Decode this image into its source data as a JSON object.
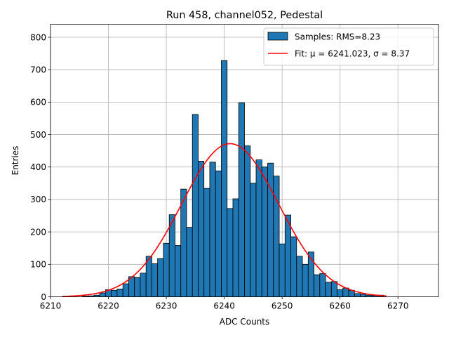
{
  "chart_data": {
    "type": "bar",
    "title": "Run 458, channel052, Pedestal",
    "xlabel": "ADC Counts",
    "ylabel": "Entries",
    "xlim": [
      6210,
      6277
    ],
    "ylim": [
      0,
      840
    ],
    "xticks": [
      6210,
      6220,
      6230,
      6240,
      6250,
      6260,
      6270
    ],
    "yticks": [
      0,
      100,
      200,
      300,
      400,
      500,
      600,
      700,
      800
    ],
    "grid": true,
    "legend_position": "top-right",
    "bar_color": "#1f77b4",
    "fit_color": "#ff0000",
    "series": [
      {
        "name": "Samples: RMS=8.23",
        "kind": "histogram",
        "bin_width": 1,
        "bin_centers": [
          6216,
          6217,
          6218,
          6219,
          6220,
          6221,
          6222,
          6223,
          6224,
          6225,
          6226,
          6227,
          6228,
          6229,
          6230,
          6231,
          6232,
          6233,
          6234,
          6235,
          6236,
          6237,
          6238,
          6239,
          6240,
          6241,
          6242,
          6243,
          6244,
          6245,
          6246,
          6247,
          6248,
          6249,
          6250,
          6251,
          6252,
          6253,
          6254,
          6255,
          6256,
          6257,
          6258,
          6259,
          6260,
          6261,
          6262,
          6263,
          6264,
          6265,
          6266,
          6267
        ],
        "values": [
          2,
          3,
          5,
          12,
          22,
          20,
          24,
          40,
          62,
          60,
          73,
          125,
          102,
          118,
          165,
          253,
          158,
          332,
          214,
          562,
          418,
          334,
          415,
          388,
          728,
          272,
          302,
          598,
          465,
          350,
          422,
          400,
          412,
          372,
          163,
          252,
          185,
          125,
          100,
          138,
          68,
          72,
          45,
          47,
          22,
          27,
          20,
          10,
          8,
          5,
          4,
          5
        ]
      },
      {
        "name": "Fit: μ = 6241.023, σ = 8.37",
        "kind": "gaussian-fit",
        "mu": 6241.023,
        "sigma": 8.37,
        "amplitude": 472,
        "x_range": [
          6212,
          6268
        ]
      }
    ]
  }
}
